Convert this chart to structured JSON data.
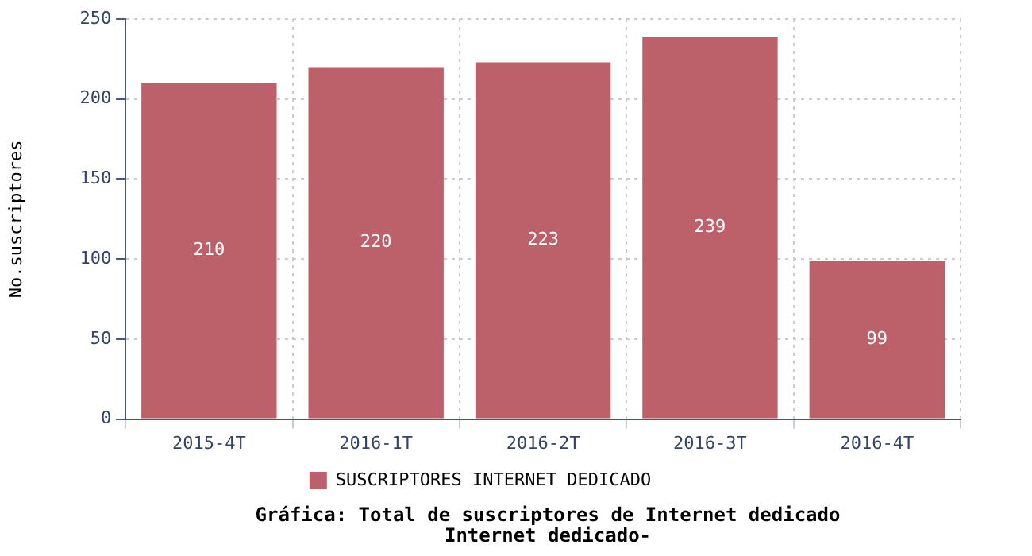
{
  "chart_data": {
    "type": "bar",
    "title": "Gráfica: Total de suscriptores de Internet dedicado",
    "subtitle": "Internet dedicado-",
    "ylabel": "No.suscriptores",
    "categories": [
      "2015-4T",
      "2016-1T",
      "2016-2T",
      "2016-3T",
      "2016-4T"
    ],
    "series": [
      {
        "name": "SUSCRIPTORES INTERNET DEDICADO",
        "color": "#bc616a",
        "values": [
          210,
          220,
          223,
          239,
          99
        ]
      }
    ],
    "ylim": [
      0,
      250
    ],
    "yticks": [
      0,
      50,
      100,
      150,
      200,
      250
    ],
    "grid": true,
    "legend": "bottom",
    "data_labels": true
  }
}
